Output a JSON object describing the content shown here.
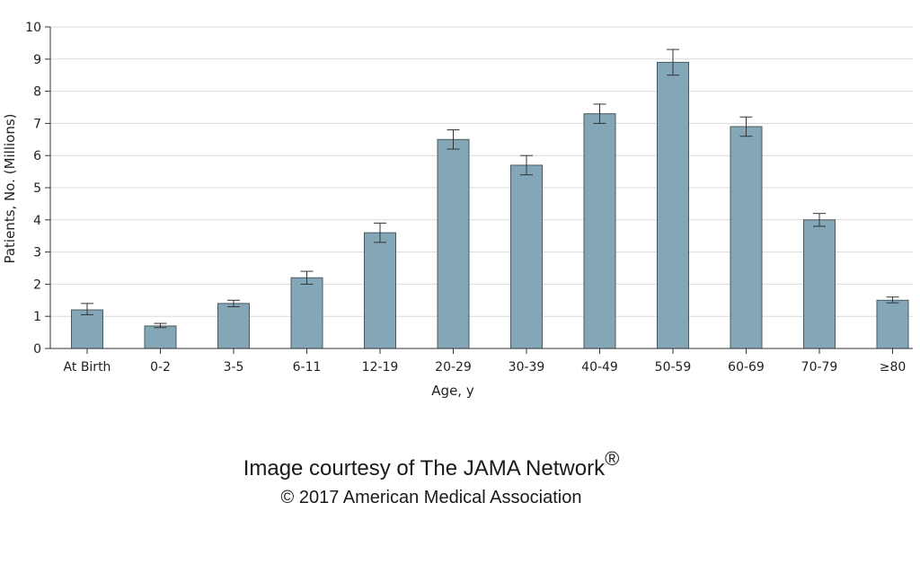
{
  "chart_data": {
    "type": "bar",
    "categories": [
      "At Birth",
      "0-2",
      "3-5",
      "6-11",
      "12-19",
      "20-29",
      "30-39",
      "40-49",
      "50-59",
      "60-69",
      "70-79",
      "≥80"
    ],
    "values": [
      1.2,
      0.7,
      1.4,
      2.2,
      3.6,
      6.5,
      5.7,
      7.3,
      8.9,
      6.9,
      4.0,
      1.5
    ],
    "error_low": [
      1.05,
      0.65,
      1.3,
      2.0,
      3.3,
      6.2,
      5.4,
      7.0,
      8.5,
      6.6,
      3.8,
      1.42
    ],
    "error_high": [
      1.4,
      0.78,
      1.5,
      2.4,
      3.9,
      6.8,
      6.0,
      7.6,
      9.3,
      7.2,
      4.2,
      1.6
    ],
    "ylim": [
      0,
      10
    ],
    "yticks": [
      "0",
      "1",
      "2",
      "3",
      "4",
      "5",
      "6",
      "7",
      "8",
      "9",
      "10"
    ],
    "ylabel": "Patients, No. (Millions)",
    "xlabel": "Age, y",
    "grid": true,
    "bar_color": "#84a7b8",
    "bar_edge_color": "#4a5a62",
    "grid_color": "#d9d9d9"
  },
  "credit": {
    "line1": "Image courtesy of The JAMA Network",
    "registered_mark": "®",
    "line2": "© 2017 American Medical Association"
  }
}
